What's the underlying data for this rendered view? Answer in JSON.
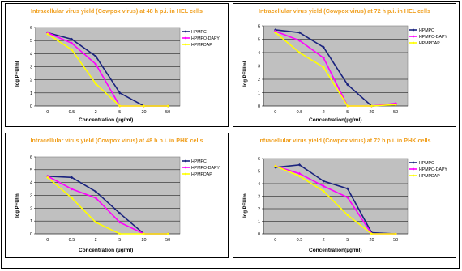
{
  "chart_data": [
    {
      "type": "line",
      "title": "Intracellular virus yield (Cowpox virus) at 48 h p.i. in HEL cells",
      "xlabel": "Concentration (µg/ml)",
      "ylabel": "log PFU/ml",
      "categories": [
        "0",
        "0.5",
        "2",
        "5",
        "20",
        "50"
      ],
      "ylim": [
        0,
        6
      ],
      "yticks": [
        "0",
        "1",
        "2",
        "3",
        "4",
        "5",
        "6"
      ],
      "grid": true,
      "legend": "top-right",
      "series": [
        {
          "name": "HPMPC",
          "color": "#1a237e",
          "values": [
            5.6,
            5.1,
            3.8,
            1.0,
            0,
            0
          ]
        },
        {
          "name": "HPMPO-DAPY",
          "color": "#ff00ff",
          "values": [
            5.6,
            4.8,
            3.2,
            0,
            0,
            0
          ]
        },
        {
          "name": "HPMPDAP",
          "color": "#ffff00",
          "values": [
            5.5,
            4.3,
            1.7,
            0,
            0,
            0
          ]
        }
      ]
    },
    {
      "type": "line",
      "title": "Intracellular virus yield (Cowpox virus) at 72 h p.i. in HEL cells",
      "xlabel": "Concentration(µg/ml)",
      "ylabel": "log PFU/ml",
      "categories": [
        "0",
        "0.5",
        "2",
        "5",
        "20",
        "50"
      ],
      "ylim": [
        0,
        6
      ],
      "yticks": [
        "0",
        "1",
        "2",
        "3",
        "4",
        "5",
        "6"
      ],
      "grid": true,
      "legend": "top-right",
      "series": [
        {
          "name": "HPMPC",
          "color": "#1a237e",
          "values": [
            5.7,
            5.5,
            4.4,
            1.6,
            0,
            0.1
          ]
        },
        {
          "name": "HPMPO-DAPY",
          "color": "#ff00ff",
          "values": [
            5.6,
            4.9,
            3.6,
            0,
            0,
            0.2
          ]
        },
        {
          "name": "HPMPDAP",
          "color": "#ffff00",
          "values": [
            5.5,
            4.0,
            2.9,
            0,
            0,
            0.1
          ]
        }
      ]
    },
    {
      "type": "line",
      "title": "Intracellular virus yield (Cowpox virus) at 48 h p.i. in PHK cells",
      "xlabel": "Concentration (µg/ml)",
      "ylabel": "log PFU/ml",
      "categories": [
        "0",
        "0.5",
        "2",
        "5",
        "20",
        "50"
      ],
      "ylim": [
        0,
        6
      ],
      "yticks": [
        "0",
        "1",
        "2",
        "3",
        "4",
        "5",
        "6"
      ],
      "grid": true,
      "legend": "top-right",
      "series": [
        {
          "name": "HPMPC",
          "color": "#1a237e",
          "values": [
            4.5,
            4.4,
            3.3,
            1.6,
            0,
            0
          ]
        },
        {
          "name": "HPMPO-DAPY",
          "color": "#ff00ff",
          "values": [
            4.5,
            3.5,
            2.8,
            0.9,
            0,
            0
          ]
        },
        {
          "name": "HPMPDAP",
          "color": "#ffff00",
          "values": [
            4.4,
            2.8,
            0.9,
            0,
            0,
            0
          ]
        }
      ]
    },
    {
      "type": "line",
      "title": "Intracellular virus yield (Cowpox virus) at 72 h p.i. in PHK cells",
      "xlabel": "Concentration(µg/ml)",
      "ylabel": "log PFU/ml",
      "categories": [
        "0",
        "0.5",
        "2",
        "5",
        "20",
        "50"
      ],
      "ylim": [
        0,
        6
      ],
      "yticks": [
        "0",
        "1",
        "2",
        "3",
        "4",
        "5",
        "6"
      ],
      "grid": true,
      "legend": "top-right",
      "series": [
        {
          "name": "HPMPC",
          "color": "#1a237e",
          "values": [
            5.3,
            5.5,
            4.2,
            3.6,
            0.1,
            0
          ]
        },
        {
          "name": "HPMPO-DAPY",
          "color": "#ff00ff",
          "values": [
            5.4,
            4.8,
            3.8,
            2.9,
            0,
            0
          ]
        },
        {
          "name": "HPMPDAP",
          "color": "#ffff00",
          "values": [
            5.4,
            4.6,
            3.4,
            1.5,
            0,
            0
          ]
        }
      ]
    }
  ]
}
